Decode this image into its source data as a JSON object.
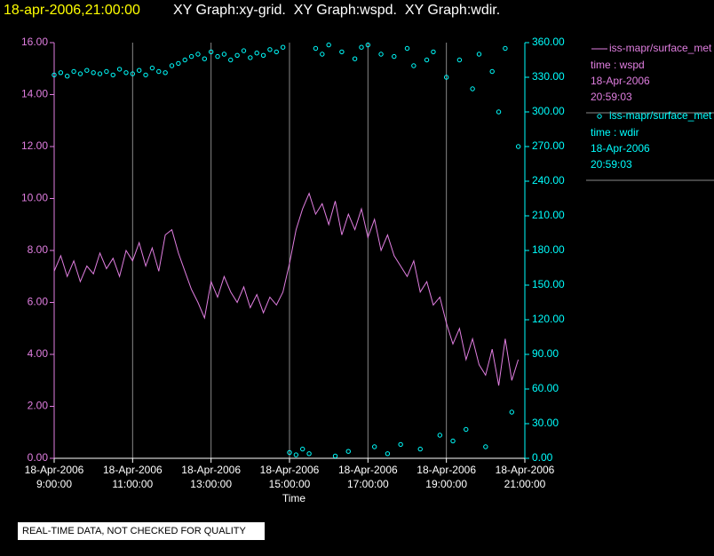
{
  "header": {
    "timestamp": "18-apr-2006,21:00:00",
    "title": "XY Graph:xy-grid.  XY Graph:wspd.  XY Graph:wdir."
  },
  "footer": "REAL-TIME DATA, NOT CHECKED FOR QUALITY",
  "chart_data": {
    "type": "line-scatter-dual",
    "xlabel": "Time",
    "x": [
      "2006-04-18T09:00",
      "2006-04-18T09:10",
      "2006-04-18T09:20",
      "2006-04-18T09:30",
      "2006-04-18T09:40",
      "2006-04-18T09:50",
      "2006-04-18T10:00",
      "2006-04-18T10:10",
      "2006-04-18T10:20",
      "2006-04-18T10:30",
      "2006-04-18T10:40",
      "2006-04-18T10:50",
      "2006-04-18T11:00",
      "2006-04-18T11:10",
      "2006-04-18T11:20",
      "2006-04-18T11:30",
      "2006-04-18T11:40",
      "2006-04-18T11:50",
      "2006-04-18T12:00",
      "2006-04-18T12:10",
      "2006-04-18T12:20",
      "2006-04-18T12:30",
      "2006-04-18T12:40",
      "2006-04-18T12:50",
      "2006-04-18T13:00",
      "2006-04-18T13:10",
      "2006-04-18T13:20",
      "2006-04-18T13:30",
      "2006-04-18T13:40",
      "2006-04-18T13:50",
      "2006-04-18T14:00",
      "2006-04-18T14:10",
      "2006-04-18T14:20",
      "2006-04-18T14:30",
      "2006-04-18T14:40",
      "2006-04-18T14:50",
      "2006-04-18T15:00",
      "2006-04-18T15:10",
      "2006-04-18T15:20",
      "2006-04-18T15:30",
      "2006-04-18T15:40",
      "2006-04-18T15:50",
      "2006-04-18T16:00",
      "2006-04-18T16:10",
      "2006-04-18T16:20",
      "2006-04-18T16:30",
      "2006-04-18T16:40",
      "2006-04-18T16:50",
      "2006-04-18T17:00",
      "2006-04-18T17:10",
      "2006-04-18T17:20",
      "2006-04-18T17:30",
      "2006-04-18T17:40",
      "2006-04-18T17:50",
      "2006-04-18T18:00",
      "2006-04-18T18:10",
      "2006-04-18T18:20",
      "2006-04-18T18:30",
      "2006-04-18T18:40",
      "2006-04-18T18:50",
      "2006-04-18T19:00",
      "2006-04-18T19:10",
      "2006-04-18T19:20",
      "2006-04-18T19:30",
      "2006-04-18T19:40",
      "2006-04-18T19:50",
      "2006-04-18T20:00",
      "2006-04-18T20:10",
      "2006-04-18T20:20",
      "2006-04-18T20:30",
      "2006-04-18T20:40",
      "2006-04-18T20:50"
    ],
    "xlim": [
      "2006-04-18T09:00",
      "2006-04-18T21:00"
    ],
    "xticks": [
      {
        "value": "2006-04-18T09:00",
        "label": [
          "18-Apr-2006",
          "9:00:00"
        ]
      },
      {
        "value": "2006-04-18T11:00",
        "label": [
          "18-Apr-2006",
          "11:00:00"
        ]
      },
      {
        "value": "2006-04-18T13:00",
        "label": [
          "18-Apr-2006",
          "13:00:00"
        ]
      },
      {
        "value": "2006-04-18T15:00",
        "label": [
          "18-Apr-2006",
          "15:00:00"
        ]
      },
      {
        "value": "2006-04-18T17:00",
        "label": [
          "18-Apr-2006",
          "17:00:00"
        ]
      },
      {
        "value": "2006-04-18T19:00",
        "label": [
          "18-Apr-2006",
          "19:00:00"
        ]
      },
      {
        "value": "2006-04-18T21:00",
        "label": [
          "18-Apr-2006",
          "21:00:00"
        ]
      }
    ],
    "ylim": [
      0,
      16
    ],
    "yticks": [
      {
        "value": 0,
        "label": "0.00"
      },
      {
        "value": 2,
        "label": "2.00"
      },
      {
        "value": 4,
        "label": "4.00"
      },
      {
        "value": 6,
        "label": "6.00"
      },
      {
        "value": 8,
        "label": "8.00"
      },
      {
        "value": 10,
        "label": "10.00"
      },
      {
        "value": 12,
        "label": "12.00"
      },
      {
        "value": 14,
        "label": "14.00"
      },
      {
        "value": 16,
        "label": "16.00"
      }
    ],
    "y2lim": [
      0,
      360
    ],
    "y2ticks": [
      {
        "value": 0,
        "label": "0.00"
      },
      {
        "value": 30,
        "label": "30.00"
      },
      {
        "value": 60,
        "label": "60.00"
      },
      {
        "value": 90,
        "label": "90.00"
      },
      {
        "value": 120,
        "label": "120.00"
      },
      {
        "value": 150,
        "label": "150.00"
      },
      {
        "value": 180,
        "label": "180.00"
      },
      {
        "value": 210,
        "label": "210.00"
      },
      {
        "value": 240,
        "label": "240.00"
      },
      {
        "value": 270,
        "label": "270.00"
      },
      {
        "value": 300,
        "label": "300.00"
      },
      {
        "value": 330,
        "label": "330.00"
      },
      {
        "value": 360,
        "label": "360.00"
      }
    ],
    "grid": true,
    "series": [
      {
        "name": "iss-mapr/surface_met",
        "legend_lines": [
          "time : wspd",
          "18-Apr-2006",
          "20:59:03"
        ],
        "color": "#e07ee0",
        "kind": "line",
        "values": [
          7.2,
          7.8,
          7.0,
          7.6,
          6.8,
          7.4,
          7.1,
          7.9,
          7.3,
          7.7,
          7.0,
          8.0,
          7.6,
          8.3,
          7.4,
          8.1,
          7.2,
          8.6,
          8.8,
          7.9,
          7.2,
          6.5,
          6.0,
          5.4,
          6.8,
          6.2,
          7.0,
          6.4,
          6.0,
          6.6,
          5.8,
          6.3,
          5.6,
          6.2,
          5.9,
          6.4,
          7.5,
          8.8,
          9.6,
          10.2,
          9.4,
          9.8,
          9.0,
          9.9,
          8.6,
          9.4,
          8.8,
          9.6,
          8.5,
          9.2,
          8.0,
          8.6,
          7.8,
          7.4,
          7.0,
          7.6,
          6.4,
          6.8,
          5.9,
          6.2,
          5.2,
          4.4,
          5.0,
          3.8,
          4.6,
          3.6,
          3.2,
          4.2,
          2.8,
          4.6,
          3.0,
          3.8
        ]
      },
      {
        "name": "iss-mapr/surface_met",
        "legend_lines": [
          "time : wdir",
          "18-Apr-2006",
          "20:59:03"
        ],
        "color": "#00ffff",
        "kind": "scatter",
        "axis": "y2",
        "values": [
          332,
          334,
          331,
          335,
          333,
          336,
          334,
          333,
          335,
          332,
          337,
          334,
          333,
          336,
          332,
          338,
          335,
          334,
          340,
          342,
          345,
          348,
          350,
          346,
          352,
          348,
          350,
          345,
          349,
          353,
          347,
          351,
          349,
          354,
          352,
          356,
          5,
          3,
          8,
          4,
          355,
          350,
          358,
          2,
          352,
          6,
          346,
          356,
          358,
          10,
          350,
          4,
          348,
          12,
          355,
          340,
          8,
          345,
          352,
          20,
          330,
          15,
          345,
          25,
          320,
          350,
          10,
          335,
          300,
          355,
          40,
          270
        ]
      }
    ]
  }
}
